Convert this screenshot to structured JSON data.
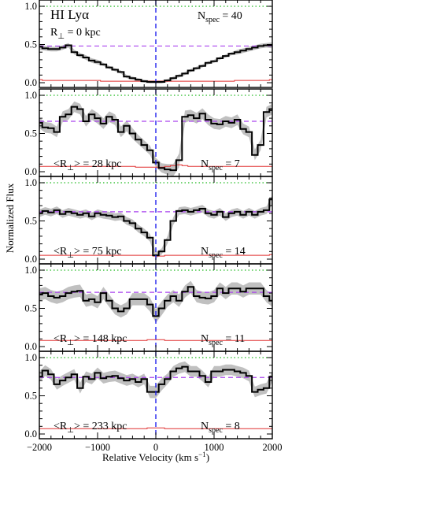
{
  "figure": {
    "ylabel": "Normalized Flux",
    "xlabel_main": "Relative Velocity (km s",
    "xlabel_sup": "−1",
    "xlabel_end": ")",
    "xlim": [
      -2000,
      2000
    ],
    "xticks": [
      "−2000",
      "−1000",
      "0",
      "1000",
      "2000"
    ],
    "yticks": [
      "0.0",
      "0.5",
      "1.0"
    ]
  },
  "colors": {
    "flux": "#000000",
    "band": "#c0c0c0",
    "error": "#e03030",
    "continuum": "#22bb22",
    "mean": "#aa44ee",
    "zero_velocity": "#2222ee"
  },
  "chart_data": [
    {
      "type": "line",
      "title_label": "HI Lyα",
      "r_label": {
        "pre": "R",
        "sub": "⊥",
        "post": " = 0 kpc"
      },
      "n_label": {
        "pre": "N",
        "sub": "spec",
        "post": " = 40"
      },
      "ylim": [
        0,
        1.0
      ],
      "mean_level": 0.48,
      "x": [
        -2000,
        -1900,
        -1800,
        -1700,
        -1600,
        -1500,
        -1400,
        -1300,
        -1200,
        -1100,
        -1000,
        -900,
        -800,
        -700,
        -600,
        -500,
        -400,
        -300,
        -200,
        -100,
        0,
        100,
        200,
        300,
        400,
        500,
        600,
        700,
        800,
        900,
        1000,
        1100,
        1200,
        1300,
        1400,
        1500,
        1600,
        1700,
        1800,
        1900,
        2000
      ],
      "flux": [
        0.47,
        0.45,
        0.44,
        0.44,
        0.46,
        0.49,
        0.4,
        0.36,
        0.33,
        0.29,
        0.27,
        0.24,
        0.2,
        0.17,
        0.14,
        0.08,
        0.06,
        0.04,
        0.02,
        0.01,
        0.01,
        0.01,
        0.03,
        0.06,
        0.09,
        0.12,
        0.16,
        0.19,
        0.22,
        0.26,
        0.28,
        0.32,
        0.35,
        0.38,
        0.4,
        0.42,
        0.44,
        0.46,
        0.48,
        0.49,
        0.49
      ],
      "error": [
        0.04,
        0.03,
        0.03,
        0.03,
        0.03,
        0.03,
        0.03,
        0.03,
        0.03,
        0.03,
        0.03,
        0.02,
        0.02,
        0.02,
        0.02,
        0.02,
        0.02,
        0.02,
        0.02,
        0.02,
        0.02,
        0.02,
        0.02,
        0.02,
        0.02,
        0.02,
        0.02,
        0.02,
        0.02,
        0.02,
        0.02,
        0.02,
        0.02,
        0.02,
        0.03,
        0.03,
        0.03,
        0.03,
        0.03,
        0.03,
        0.04
      ]
    },
    {
      "type": "line",
      "title_label": "",
      "r_label": {
        "pre": "<R",
        "sub": "⊥",
        "post": "> = 28 kpc"
      },
      "n_label": {
        "pre": "N",
        "sub": "spec",
        "post": " = 7"
      },
      "ylim": [
        0,
        1.0
      ],
      "mean_level": 0.66,
      "x": [
        -2000,
        -1900,
        -1800,
        -1700,
        -1600,
        -1500,
        -1400,
        -1300,
        -1200,
        -1100,
        -1000,
        -900,
        -800,
        -700,
        -600,
        -500,
        -400,
        -300,
        -200,
        -100,
        0,
        100,
        200,
        300,
        400,
        500,
        600,
        700,
        800,
        900,
        1000,
        1100,
        1200,
        1300,
        1400,
        1500,
        1600,
        1700,
        1800,
        1900,
        2000
      ],
      "flux": [
        0.64,
        0.58,
        0.57,
        0.52,
        0.72,
        0.75,
        0.85,
        0.82,
        0.66,
        0.75,
        0.7,
        0.63,
        0.72,
        0.68,
        0.52,
        0.6,
        0.5,
        0.42,
        0.35,
        0.28,
        0.12,
        0.05,
        0.03,
        0.02,
        0.15,
        0.72,
        0.74,
        0.7,
        0.76,
        0.68,
        0.63,
        0.62,
        0.66,
        0.64,
        0.68,
        0.56,
        0.52,
        0.22,
        0.35,
        0.78,
        0.82
      ],
      "error": [
        0.07,
        0.07,
        0.07,
        0.07,
        0.07,
        0.07,
        0.07,
        0.07,
        0.07,
        0.07,
        0.07,
        0.07,
        0.07,
        0.07,
        0.07,
        0.07,
        0.07,
        0.06,
        0.06,
        0.06,
        0.06,
        0.06,
        0.07,
        0.08,
        0.09,
        0.08,
        0.07,
        0.07,
        0.07,
        0.07,
        0.07,
        0.07,
        0.07,
        0.07,
        0.07,
        0.07,
        0.07,
        0.07,
        0.07,
        0.07,
        0.07
      ]
    },
    {
      "type": "line",
      "title_label": "",
      "r_label": {
        "pre": "<R",
        "sub": "⊥",
        "post": "> = 75 kpc"
      },
      "n_label": {
        "pre": "N",
        "sub": "spec",
        "post": " = 14"
      },
      "ylim": [
        0,
        1.0
      ],
      "mean_level": 0.62,
      "x": [
        -2000,
        -1900,
        -1800,
        -1700,
        -1600,
        -1500,
        -1400,
        -1300,
        -1200,
        -1100,
        -1000,
        -900,
        -800,
        -700,
        -600,
        -500,
        -400,
        -300,
        -200,
        -100,
        0,
        100,
        200,
        300,
        400,
        500,
        600,
        700,
        800,
        900,
        1000,
        1100,
        1200,
        1300,
        1400,
        1500,
        1600,
        1700,
        1800,
        1900,
        2000
      ],
      "flux": [
        0.6,
        0.63,
        0.61,
        0.64,
        0.59,
        0.62,
        0.6,
        0.58,
        0.6,
        0.56,
        0.6,
        0.58,
        0.57,
        0.55,
        0.56,
        0.5,
        0.47,
        0.4,
        0.35,
        0.28,
        0.05,
        0.1,
        0.25,
        0.5,
        0.63,
        0.64,
        0.62,
        0.64,
        0.66,
        0.6,
        0.58,
        0.62,
        0.55,
        0.6,
        0.62,
        0.58,
        0.62,
        0.58,
        0.62,
        0.64,
        0.78
      ],
      "error": [
        0.05,
        0.05,
        0.05,
        0.05,
        0.05,
        0.05,
        0.05,
        0.05,
        0.05,
        0.05,
        0.05,
        0.05,
        0.05,
        0.05,
        0.05,
        0.05,
        0.05,
        0.05,
        0.05,
        0.05,
        0.04,
        0.04,
        0.05,
        0.05,
        0.05,
        0.05,
        0.05,
        0.05,
        0.05,
        0.05,
        0.05,
        0.05,
        0.05,
        0.05,
        0.05,
        0.05,
        0.05,
        0.05,
        0.05,
        0.05,
        0.06
      ]
    },
    {
      "type": "line",
      "title_label": "",
      "r_label": {
        "pre": "<R",
        "sub": "⊥",
        "post": "> = 148 kpc"
      },
      "n_label": {
        "pre": "N",
        "sub": "spec",
        "post": " = 11"
      },
      "ylim": [
        0,
        1.0
      ],
      "mean_level": 0.71,
      "x": [
        -2000,
        -1900,
        -1800,
        -1700,
        -1600,
        -1500,
        -1400,
        -1300,
        -1200,
        -1100,
        -1000,
        -900,
        -800,
        -700,
        -600,
        -500,
        -400,
        -300,
        -200,
        -100,
        0,
        100,
        200,
        300,
        400,
        500,
        600,
        700,
        800,
        900,
        1000,
        1100,
        1200,
        1300,
        1400,
        1500,
        1600,
        1700,
        1800,
        1900,
        2000
      ],
      "flux": [
        0.68,
        0.7,
        0.66,
        0.64,
        0.66,
        0.7,
        0.72,
        0.73,
        0.6,
        0.62,
        0.58,
        0.7,
        0.6,
        0.5,
        0.46,
        0.5,
        0.62,
        0.62,
        0.62,
        0.55,
        0.4,
        0.5,
        0.6,
        0.66,
        0.6,
        0.72,
        0.78,
        0.66,
        0.64,
        0.63,
        0.66,
        0.76,
        0.7,
        0.76,
        0.76,
        0.72,
        0.76,
        0.76,
        0.76,
        0.66,
        0.6
      ],
      "error": [
        0.08,
        0.08,
        0.08,
        0.08,
        0.08,
        0.08,
        0.08,
        0.08,
        0.08,
        0.08,
        0.08,
        0.08,
        0.08,
        0.08,
        0.08,
        0.08,
        0.08,
        0.08,
        0.08,
        0.09,
        0.09,
        0.09,
        0.08,
        0.08,
        0.08,
        0.08,
        0.08,
        0.08,
        0.08,
        0.08,
        0.08,
        0.08,
        0.08,
        0.08,
        0.08,
        0.08,
        0.08,
        0.08,
        0.08,
        0.08,
        0.08
      ]
    },
    {
      "type": "line",
      "title_label": "",
      "r_label": {
        "pre": "<R",
        "sub": "⊥",
        "post": "> = 233 kpc"
      },
      "n_label": {
        "pre": "N",
        "sub": "spec",
        "post": " = 8"
      },
      "ylim": [
        0,
        1.0
      ],
      "mean_level": 0.74,
      "x": [
        -2000,
        -1900,
        -1800,
        -1700,
        -1600,
        -1500,
        -1400,
        -1300,
        -1200,
        -1100,
        -1000,
        -900,
        -800,
        -700,
        -600,
        -500,
        -400,
        -300,
        -200,
        -100,
        0,
        100,
        200,
        300,
        400,
        500,
        600,
        700,
        800,
        900,
        1000,
        1100,
        1200,
        1300,
        1400,
        1500,
        1600,
        1700,
        1800,
        1900,
        2000
      ],
      "flux": [
        0.75,
        0.83,
        0.78,
        0.65,
        0.7,
        0.74,
        0.78,
        0.6,
        0.75,
        0.72,
        0.8,
        0.73,
        0.75,
        0.76,
        0.73,
        0.7,
        0.72,
        0.68,
        0.72,
        0.55,
        0.55,
        0.65,
        0.72,
        0.82,
        0.86,
        0.88,
        0.82,
        0.82,
        0.76,
        0.68,
        0.82,
        0.82,
        0.84,
        0.84,
        0.82,
        0.8,
        0.76,
        0.55,
        0.58,
        0.6,
        0.75
      ],
      "error": [
        0.07,
        0.07,
        0.07,
        0.07,
        0.07,
        0.07,
        0.07,
        0.07,
        0.07,
        0.07,
        0.07,
        0.07,
        0.07,
        0.07,
        0.07,
        0.07,
        0.07,
        0.07,
        0.07,
        0.08,
        0.08,
        0.08,
        0.07,
        0.07,
        0.07,
        0.07,
        0.07,
        0.07,
        0.07,
        0.07,
        0.07,
        0.07,
        0.07,
        0.07,
        0.07,
        0.07,
        0.07,
        0.07,
        0.07,
        0.07,
        0.07
      ]
    }
  ]
}
